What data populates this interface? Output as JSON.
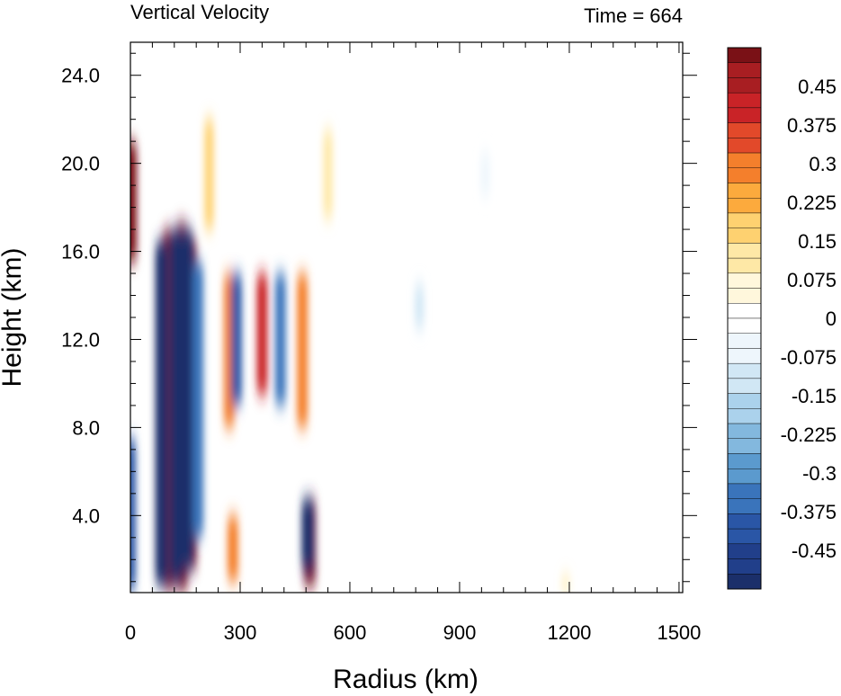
{
  "chart_data": {
    "type": "heatmap",
    "title": "Vertical Velocity",
    "subtitle": "Time = 664",
    "xlabel": "Radius (km)",
    "ylabel": "Height (km)",
    "xlim": [
      0,
      1510
    ],
    "ylim": [
      0.5,
      25.5
    ],
    "x_ticks": [
      "0",
      "300",
      "600",
      "900",
      "1200",
      "1500"
    ],
    "x_tick_values": [
      0,
      300,
      600,
      900,
      1200,
      1500
    ],
    "y_ticks": [
      "4.0",
      "8.0",
      "12.0",
      "16.0",
      "20.0",
      "24.0"
    ],
    "y_tick_values": [
      4,
      8,
      12,
      16,
      20,
      24
    ],
    "colorbar": {
      "labels": [
        "0.45",
        "0.375",
        "0.3",
        "0.225",
        "0.15",
        "0.075",
        "0",
        "-0.075",
        "-0.15",
        "-0.225",
        "-0.3",
        "-0.375",
        "-0.45"
      ],
      "label_values": [
        0.45,
        0.375,
        0.3,
        0.225,
        0.15,
        0.075,
        0,
        -0.075,
        -0.15,
        -0.225,
        -0.3,
        -0.375,
        -0.45
      ],
      "levels": 36,
      "range": [
        -0.525,
        0.525
      ],
      "colors": [
        "#1b2f6a",
        "#213f8a",
        "#2a56a6",
        "#3a74bb",
        "#5b9ace",
        "#83b8de",
        "#abd2ec",
        "#d1e7f5",
        "#eef6fc",
        "#ffffff",
        "#fff7dc",
        "#fee8a6",
        "#fed170",
        "#fcaa3d",
        "#f47f2c",
        "#e2492a",
        "#c92327",
        "#a81e22",
        "#7a1116"
      ]
    },
    "features": [
      {
        "kind": "up",
        "r": 105,
        "z_bottom": 0.6,
        "z_top": 17.0,
        "w": 0.55
      },
      {
        "kind": "up",
        "r": 140,
        "z_bottom": 0.6,
        "z_top": 17.3,
        "w": 0.55
      },
      {
        "kind": "up",
        "r": 165,
        "z_bottom": 1.5,
        "z_top": 16.5,
        "w": 0.55
      },
      {
        "kind": "down",
        "r": 85,
        "z_bottom": 0.8,
        "z_top": 16.5,
        "w": -0.5
      },
      {
        "kind": "down",
        "r": 125,
        "z_bottom": 1.0,
        "z_top": 17.0,
        "w": -0.55
      },
      {
        "kind": "down",
        "r": 155,
        "z_bottom": 1.5,
        "z_top": 17.0,
        "w": -0.55
      },
      {
        "kind": "down",
        "r": 185,
        "z_bottom": 3.0,
        "z_top": 15.5,
        "w": -0.35
      },
      {
        "kind": "up",
        "r": 0,
        "z_bottom": 15.5,
        "z_top": 21.0,
        "w": 0.5
      },
      {
        "kind": "down",
        "r": 0,
        "z_bottom": 0.6,
        "z_top": 7.5,
        "w": -0.4
      },
      {
        "kind": "up",
        "r": 270,
        "z_bottom": 8.0,
        "z_top": 15.0,
        "w": 0.3
      },
      {
        "kind": "down",
        "r": 290,
        "z_bottom": 9.0,
        "z_top": 15.0,
        "w": -0.4
      },
      {
        "kind": "up",
        "r": 360,
        "z_bottom": 9.5,
        "z_top": 15.0,
        "w": 0.4
      },
      {
        "kind": "down",
        "r": 410,
        "z_bottom": 9.0,
        "z_top": 15.0,
        "w": -0.35
      },
      {
        "kind": "up",
        "r": 470,
        "z_bottom": 8.0,
        "z_top": 15.0,
        "w": 0.3
      },
      {
        "kind": "up",
        "r": 490,
        "z_bottom": 0.8,
        "z_top": 4.8,
        "w": 0.55
      },
      {
        "kind": "down",
        "r": 485,
        "z_bottom": 1.5,
        "z_top": 4.8,
        "w": -0.55
      },
      {
        "kind": "up",
        "r": 280,
        "z_bottom": 1.0,
        "z_top": 4.0,
        "w": 0.3
      },
      {
        "kind": "up",
        "r": 215,
        "z_bottom": 17.0,
        "z_top": 22.0,
        "w": 0.2
      },
      {
        "kind": "up",
        "r": 540,
        "z_bottom": 17.5,
        "z_top": 21.5,
        "w": 0.12
      },
      {
        "kind": "down",
        "r": 790,
        "z_bottom": 12.5,
        "z_top": 14.5,
        "w": -0.12
      },
      {
        "kind": "down",
        "r": 970,
        "z_bottom": 18.5,
        "z_top": 20.5,
        "w": -0.08
      },
      {
        "kind": "up",
        "r": 1190,
        "z_bottom": 0.6,
        "z_top": 1.2,
        "w": 0.1
      }
    ]
  }
}
